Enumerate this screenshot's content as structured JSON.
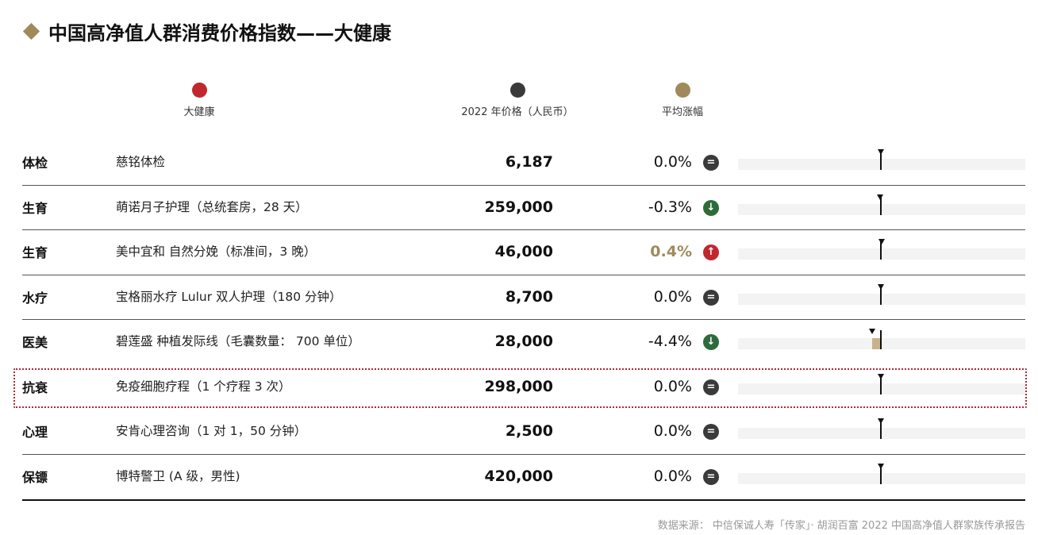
{
  "title": "中国高净值人群消费价格指数——大健康",
  "legend": [
    {
      "label": "大健康",
      "color": "#c0282d"
    },
    {
      "label": "2022 年价格（人民币）",
      "color": "#3a3a3a"
    },
    {
      "label": "平均涨幅",
      "color": "#a08a5c"
    }
  ],
  "colors": {
    "up": "#c0282d",
    "down": "#2e6b3a",
    "flat": "#3a3a3a",
    "highlight": "#b3282e"
  },
  "chart_data": {
    "type": "table",
    "columns": [
      "大健康",
      "2022 年价格（人民币）",
      "平均涨幅"
    ],
    "rows": [
      {
        "category": "体检",
        "item": "慈铭体检",
        "price": "6,187",
        "change": "0.0%",
        "change_value": 0.0,
        "trend": "flat-icon"
      },
      {
        "category": "生育",
        "item": "萌诺月子护理（总统套房，28 天）",
        "price": "259,000",
        "change": "-0.3%",
        "change_value": -0.3,
        "trend": "down-arrow-icon"
      },
      {
        "category": "生育",
        "item": "美中宜和 自然分娩（标准间，3 晚）",
        "price": "46,000",
        "change": "0.4%",
        "change_value": 0.4,
        "trend": "up-arrow-icon"
      },
      {
        "category": "水疗",
        "item": "宝格丽水疗 Lulur 双人护理（180 分钟）",
        "price": "8,700",
        "change": "0.0%",
        "change_value": 0.0,
        "trend": "flat-icon"
      },
      {
        "category": "医美",
        "item": "碧莲盛 种植发际线（毛囊数量： 700 单位）",
        "price": "28,000",
        "change": "-4.4%",
        "change_value": -4.4,
        "trend": "down-arrow-icon"
      },
      {
        "category": "抗衰",
        "item": "免疫细胞疗程（1 个疗程 3 次）",
        "price": "298,000",
        "change": "0.0%",
        "change_value": 0.0,
        "trend": "flat-icon",
        "highlighted": true
      },
      {
        "category": "心理",
        "item": "安肯心理咨询（1 对 1，50 分钟）",
        "price": "2,500",
        "change": "0.0%",
        "change_value": 0.0,
        "trend": "flat-icon"
      },
      {
        "category": "保镖",
        "item": "博特警卫 (A 级，男性)",
        "price": "420,000",
        "change": "0.0%",
        "change_value": 0.0,
        "trend": "flat-icon"
      }
    ]
  },
  "source": "数据来源： 中信保诚人寿「传家」· 胡润百富 2022 中国高净值人群家族传承报告"
}
